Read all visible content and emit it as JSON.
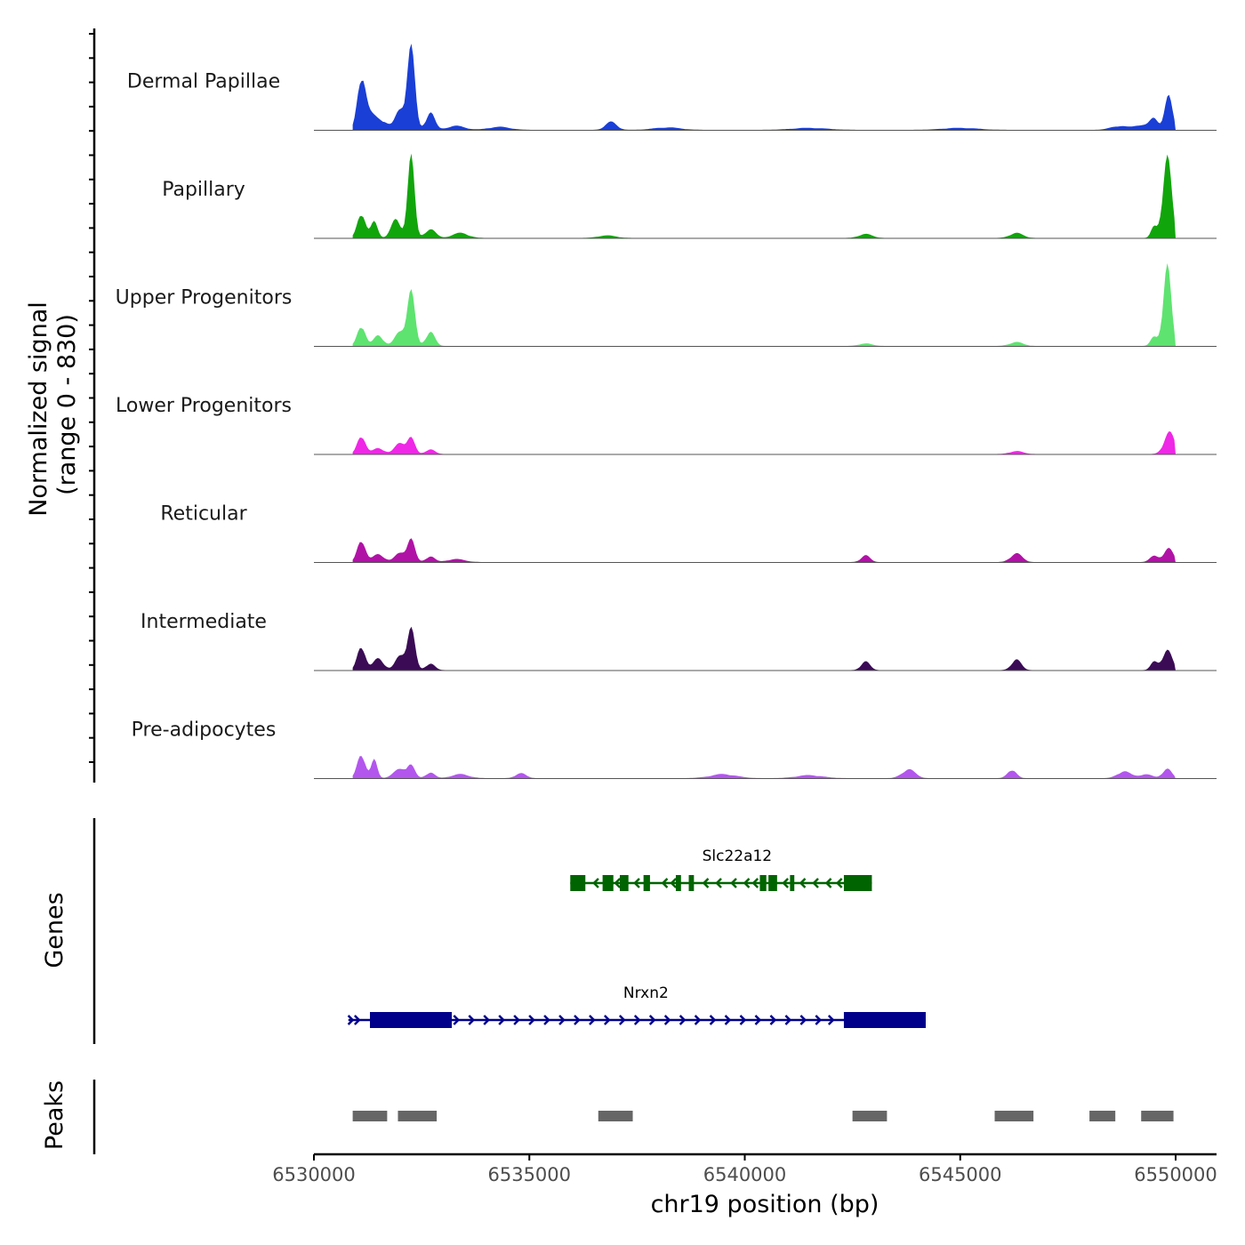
{
  "chart_data": {
    "type": "area",
    "title": "",
    "xlabel": "chr19 position (bp)",
    "ylabel": "Normalized signal",
    "ylabel_sub": "(range 0 - 830)",
    "ylim": [
      0,
      830
    ],
    "xlim": [
      6530000,
      6551000
    ],
    "x_ticks": [
      6530000,
      6535000,
      6540000,
      6545000,
      6550000
    ],
    "x_tick_labels": [
      "6530000",
      "6535000",
      "6540000",
      "6545000",
      "6550000"
    ],
    "tracks": [
      {
        "name": "Dermal Papillae",
        "color": "#1a3fd6",
        "peaks": [
          [
            6531100,
            530,
            90
          ],
          [
            6531300,
            150,
            150
          ],
          [
            6531600,
            80,
            130
          ],
          [
            6532000,
            200,
            110
          ],
          [
            6532250,
            830,
            90
          ],
          [
            6532700,
            180,
            100
          ],
          [
            6533300,
            40,
            200
          ],
          [
            6534300,
            30,
            250
          ],
          [
            6536900,
            80,
            130
          ],
          [
            6538200,
            25,
            300
          ],
          [
            6541500,
            20,
            400
          ],
          [
            6545000,
            20,
            400
          ],
          [
            6548700,
            40,
            200
          ],
          [
            6549200,
            50,
            150
          ],
          [
            6549500,
            110,
            100
          ],
          [
            6549830,
            340,
            90
          ]
        ]
      },
      {
        "name": "Papillary",
        "color": "#11a50c",
        "peaks": [
          [
            6531100,
            270,
            90
          ],
          [
            6531400,
            160,
            80
          ],
          [
            6531900,
            180,
            110
          ],
          [
            6532250,
            830,
            80
          ],
          [
            6532700,
            90,
            120
          ],
          [
            6533400,
            50,
            180
          ],
          [
            6536800,
            25,
            200
          ],
          [
            6542800,
            40,
            150
          ],
          [
            6546300,
            50,
            150
          ],
          [
            6549500,
            110,
            70
          ],
          [
            6549800,
            830,
            100
          ]
        ]
      },
      {
        "name": "Upper Progenitors",
        "color": "#5ee370",
        "peaks": [
          [
            6531100,
            220,
            90
          ],
          [
            6531500,
            110,
            110
          ],
          [
            6532000,
            140,
            120
          ],
          [
            6532250,
            550,
            90
          ],
          [
            6532700,
            150,
            100
          ],
          [
            6542800,
            25,
            150
          ],
          [
            6546300,
            40,
            150
          ],
          [
            6549500,
            90,
            80
          ],
          [
            6549800,
            830,
            90
          ]
        ]
      },
      {
        "name": "Lower Progenitors",
        "color": "#ef27e6",
        "peaks": [
          [
            6531100,
            200,
            90
          ],
          [
            6531500,
            60,
            130
          ],
          [
            6532000,
            110,
            120
          ],
          [
            6532250,
            160,
            90
          ],
          [
            6532700,
            50,
            100
          ],
          [
            6546300,
            30,
            150
          ],
          [
            6549850,
            220,
            120
          ]
        ]
      },
      {
        "name": "Reticular",
        "color": "#b112a6",
        "peaks": [
          [
            6531100,
            240,
            90
          ],
          [
            6531500,
            80,
            130
          ],
          [
            6532000,
            90,
            120
          ],
          [
            6532250,
            230,
            90
          ],
          [
            6532700,
            60,
            100
          ],
          [
            6533300,
            30,
            200
          ],
          [
            6542800,
            70,
            100
          ],
          [
            6546300,
            90,
            130
          ],
          [
            6549500,
            60,
            100
          ],
          [
            6549830,
            140,
            110
          ]
        ]
      },
      {
        "name": "Intermediate",
        "color": "#3b0b56",
        "peaks": [
          [
            6531100,
            260,
            90
          ],
          [
            6531500,
            120,
            120
          ],
          [
            6532000,
            140,
            110
          ],
          [
            6532250,
            430,
            90
          ],
          [
            6532700,
            70,
            100
          ],
          [
            6542800,
            90,
            100
          ],
          [
            6546300,
            110,
            110
          ],
          [
            6549500,
            80,
            80
          ],
          [
            6549800,
            210,
            110
          ]
        ]
      },
      {
        "name": "Pre-adipocytes",
        "color": "#b356ee",
        "peaks": [
          [
            6531100,
            260,
            90
          ],
          [
            6531400,
            180,
            70
          ],
          [
            6532000,
            90,
            150
          ],
          [
            6532250,
            120,
            90
          ],
          [
            6532700,
            60,
            100
          ],
          [
            6533400,
            40,
            200
          ],
          [
            6534800,
            50,
            120
          ],
          [
            6539500,
            40,
            300
          ],
          [
            6541500,
            30,
            300
          ],
          [
            6543800,
            90,
            150
          ],
          [
            6546200,
            90,
            100
          ],
          [
            6548800,
            70,
            150
          ],
          [
            6549300,
            40,
            150
          ],
          [
            6549800,
            100,
            100
          ]
        ]
      }
    ],
    "genes_label": "Genes",
    "genes": [
      {
        "name": "Slc22a12",
        "strand": "-",
        "color": "#006400",
        "start": 6535950,
        "end": 6542950,
        "exons": [
          [
            6535950,
            6536300
          ],
          [
            6536700,
            6536950
          ],
          [
            6537100,
            6537300
          ],
          [
            6537650,
            6537800
          ],
          [
            6538400,
            6538520
          ],
          [
            6538700,
            6538820
          ],
          [
            6540350,
            6540500
          ],
          [
            6540550,
            6540750
          ],
          [
            6541050,
            6541150
          ],
          [
            6542300,
            6542950
          ]
        ],
        "arrows": [
          6536500,
          6537000,
          6537450,
          6538100,
          6538300,
          6539050,
          6539350,
          6539700,
          6540000,
          6540200,
          6540900,
          6541300,
          6541600,
          6541900,
          6542150
        ]
      },
      {
        "name": "Nrxn2",
        "strand": "+",
        "color": "#00008b",
        "start": 6530800,
        "end": 6544200,
        "exons": [
          [
            6531300,
            6533200
          ],
          [
            6542300,
            6544200
          ]
        ],
        "arrows": [
          6530900,
          6531050,
          6533350,
          6533700,
          6534050,
          6534400,
          6534750,
          6535100,
          6535450,
          6535800,
          6536150,
          6536500,
          6536850,
          6537200,
          6537550,
          6537900,
          6538250,
          6538600,
          6538950,
          6539300,
          6539650,
          6540000,
          6540350,
          6540700,
          6541050,
          6541400,
          6541750,
          6542050
        ]
      }
    ],
    "peaks_label": "Peaks",
    "peak_regions": [
      [
        6530900,
        6531700
      ],
      [
        6531950,
        6532850
      ],
      [
        6536600,
        6537400
      ],
      [
        6542500,
        6543300
      ],
      [
        6545800,
        6546700
      ],
      [
        6548000,
        6548600
      ],
      [
        6549200,
        6549950
      ]
    ],
    "colors": {
      "axis": "#000000",
      "tick_label": "#4d4d4d",
      "baseline": "#555555",
      "peak_region": "#666666"
    }
  }
}
